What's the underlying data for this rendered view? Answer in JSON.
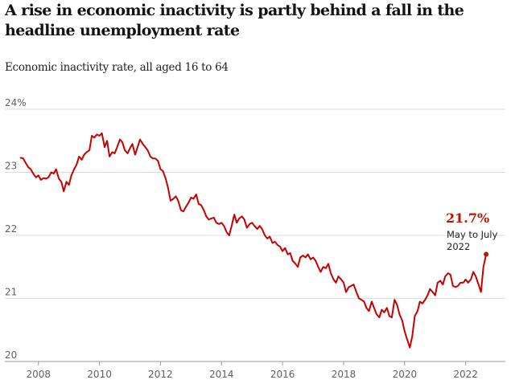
{
  "title": "A rise in economic inactivity is partly behind a fall in the headline unemployment rate",
  "subtitle": "Economic inactivity rate, all aged 16 to 64",
  "colors": {
    "line": "#c70000",
    "callout": "#b51800",
    "grid": "#dcdcdc",
    "axis": "#999999"
  },
  "chart_data": {
    "type": "line",
    "title": "A rise in economic inactivity is partly behind a fall in the headline unemployment rate",
    "subtitle": "Economic inactivity rate, all aged 16 to 64",
    "xlabel": "",
    "ylabel": "",
    "unit": "%",
    "ylim": [
      20,
      24
    ],
    "xlim": [
      2006.9,
      2023.3
    ],
    "grid": true,
    "y_ticks": [
      {
        "value": 20,
        "label": "20"
      },
      {
        "value": 21,
        "label": "21"
      },
      {
        "value": 22,
        "label": "22"
      },
      {
        "value": 23,
        "label": "23"
      },
      {
        "value": 24,
        "label": "24%"
      }
    ],
    "x_ticks": [
      {
        "value": 2008,
        "label": "2008"
      },
      {
        "value": 2010,
        "label": "2010"
      },
      {
        "value": 2012,
        "label": "2012"
      },
      {
        "value": 2014,
        "label": "2014"
      },
      {
        "value": 2016,
        "label": "2016"
      },
      {
        "value": 2018,
        "label": "2018"
      },
      {
        "value": 2020,
        "label": "2020"
      },
      {
        "value": 2022,
        "label": "2022"
      }
    ],
    "series": [
      {
        "name": "",
        "points": [
          [
            2007.42,
            23.23
          ],
          [
            2007.5,
            23.22
          ],
          [
            2007.58,
            23.15
          ],
          [
            2007.67,
            23.08
          ],
          [
            2007.75,
            23.05
          ],
          [
            2007.83,
            22.98
          ],
          [
            2007.92,
            22.92
          ],
          [
            2008.0,
            22.95
          ],
          [
            2008.08,
            22.88
          ],
          [
            2008.17,
            22.91
          ],
          [
            2008.25,
            22.9
          ],
          [
            2008.33,
            22.92
          ],
          [
            2008.42,
            23.0
          ],
          [
            2008.5,
            22.98
          ],
          [
            2008.58,
            23.05
          ],
          [
            2008.67,
            22.9
          ],
          [
            2008.75,
            22.85
          ],
          [
            2008.83,
            22.7
          ],
          [
            2008.92,
            22.85
          ],
          [
            2009.0,
            22.8
          ],
          [
            2009.08,
            22.95
          ],
          [
            2009.17,
            23.05
          ],
          [
            2009.25,
            23.12
          ],
          [
            2009.33,
            23.25
          ],
          [
            2009.42,
            23.2
          ],
          [
            2009.5,
            23.28
          ],
          [
            2009.58,
            23.32
          ],
          [
            2009.67,
            23.35
          ],
          [
            2009.75,
            23.58
          ],
          [
            2009.83,
            23.55
          ],
          [
            2009.92,
            23.6
          ],
          [
            2010.0,
            23.58
          ],
          [
            2010.08,
            23.62
          ],
          [
            2010.17,
            23.4
          ],
          [
            2010.25,
            23.5
          ],
          [
            2010.33,
            23.25
          ],
          [
            2010.42,
            23.32
          ],
          [
            2010.5,
            23.3
          ],
          [
            2010.58,
            23.4
          ],
          [
            2010.67,
            23.52
          ],
          [
            2010.75,
            23.48
          ],
          [
            2010.83,
            23.35
          ],
          [
            2010.92,
            23.3
          ],
          [
            2011.0,
            23.38
          ],
          [
            2011.08,
            23.45
          ],
          [
            2011.17,
            23.28
          ],
          [
            2011.25,
            23.4
          ],
          [
            2011.33,
            23.52
          ],
          [
            2011.42,
            23.45
          ],
          [
            2011.5,
            23.4
          ],
          [
            2011.58,
            23.35
          ],
          [
            2011.67,
            23.25
          ],
          [
            2011.75,
            23.22
          ],
          [
            2011.83,
            23.22
          ],
          [
            2011.92,
            23.18
          ],
          [
            2012.0,
            23.05
          ],
          [
            2012.08,
            23.02
          ],
          [
            2012.17,
            22.9
          ],
          [
            2012.25,
            22.75
          ],
          [
            2012.33,
            22.55
          ],
          [
            2012.42,
            22.58
          ],
          [
            2012.5,
            22.62
          ],
          [
            2012.58,
            22.55
          ],
          [
            2012.67,
            22.4
          ],
          [
            2012.75,
            22.38
          ],
          [
            2012.83,
            22.45
          ],
          [
            2012.92,
            22.52
          ],
          [
            2013.0,
            22.6
          ],
          [
            2013.08,
            22.58
          ],
          [
            2013.17,
            22.65
          ],
          [
            2013.25,
            22.5
          ],
          [
            2013.33,
            22.48
          ],
          [
            2013.42,
            22.4
          ],
          [
            2013.5,
            22.3
          ],
          [
            2013.58,
            22.25
          ],
          [
            2013.67,
            22.27
          ],
          [
            2013.75,
            22.28
          ],
          [
            2013.83,
            22.2
          ],
          [
            2013.92,
            22.18
          ],
          [
            2014.0,
            22.2
          ],
          [
            2014.08,
            22.15
          ],
          [
            2014.17,
            22.05
          ],
          [
            2014.25,
            22.0
          ],
          [
            2014.33,
            22.15
          ],
          [
            2014.42,
            22.33
          ],
          [
            2014.5,
            22.2
          ],
          [
            2014.58,
            22.27
          ],
          [
            2014.67,
            22.3
          ],
          [
            2014.75,
            22.25
          ],
          [
            2014.83,
            22.12
          ],
          [
            2014.92,
            22.18
          ],
          [
            2015.0,
            22.2
          ],
          [
            2015.08,
            22.15
          ],
          [
            2015.17,
            22.1
          ],
          [
            2015.25,
            22.15
          ],
          [
            2015.33,
            22.1
          ],
          [
            2015.42,
            22.0
          ],
          [
            2015.5,
            21.95
          ],
          [
            2015.58,
            21.98
          ],
          [
            2015.67,
            21.88
          ],
          [
            2015.75,
            21.9
          ],
          [
            2015.83,
            21.85
          ],
          [
            2015.92,
            21.82
          ],
          [
            2016.0,
            21.75
          ],
          [
            2016.08,
            21.8
          ],
          [
            2016.17,
            21.7
          ],
          [
            2016.25,
            21.72
          ],
          [
            2016.33,
            21.6
          ],
          [
            2016.42,
            21.55
          ],
          [
            2016.5,
            21.5
          ],
          [
            2016.58,
            21.65
          ],
          [
            2016.67,
            21.68
          ],
          [
            2016.75,
            21.65
          ],
          [
            2016.83,
            21.7
          ],
          [
            2016.92,
            21.62
          ],
          [
            2017.0,
            21.65
          ],
          [
            2017.08,
            21.6
          ],
          [
            2017.17,
            21.5
          ],
          [
            2017.25,
            21.42
          ],
          [
            2017.33,
            21.5
          ],
          [
            2017.42,
            21.48
          ],
          [
            2017.5,
            21.55
          ],
          [
            2017.58,
            21.4
          ],
          [
            2017.67,
            21.3
          ],
          [
            2017.75,
            21.25
          ],
          [
            2017.83,
            21.35
          ],
          [
            2017.92,
            21.3
          ],
          [
            2018.0,
            21.25
          ],
          [
            2018.08,
            21.1
          ],
          [
            2018.17,
            21.18
          ],
          [
            2018.25,
            21.2
          ],
          [
            2018.33,
            21.22
          ],
          [
            2018.42,
            21.1
          ],
          [
            2018.5,
            21.0
          ],
          [
            2018.58,
            20.98
          ],
          [
            2018.67,
            20.95
          ],
          [
            2018.75,
            20.85
          ],
          [
            2018.83,
            20.8
          ],
          [
            2018.92,
            20.95
          ],
          [
            2019.0,
            20.85
          ],
          [
            2019.08,
            20.75
          ],
          [
            2019.17,
            20.7
          ],
          [
            2019.25,
            20.82
          ],
          [
            2019.33,
            20.78
          ],
          [
            2019.42,
            20.85
          ],
          [
            2019.5,
            20.72
          ],
          [
            2019.58,
            20.7
          ],
          [
            2019.67,
            20.98
          ],
          [
            2019.75,
            20.9
          ],
          [
            2019.83,
            20.75
          ],
          [
            2019.92,
            20.65
          ],
          [
            2020.0,
            20.48
          ],
          [
            2020.08,
            20.35
          ],
          [
            2020.17,
            20.22
          ],
          [
            2020.25,
            20.4
          ],
          [
            2020.33,
            20.72
          ],
          [
            2020.42,
            20.8
          ],
          [
            2020.5,
            20.95
          ],
          [
            2020.58,
            20.92
          ],
          [
            2020.67,
            20.98
          ],
          [
            2020.75,
            21.05
          ],
          [
            2020.83,
            21.15
          ],
          [
            2020.92,
            21.1
          ],
          [
            2021.0,
            21.05
          ],
          [
            2021.08,
            21.25
          ],
          [
            2021.17,
            21.28
          ],
          [
            2021.25,
            21.22
          ],
          [
            2021.33,
            21.35
          ],
          [
            2021.42,
            21.4
          ],
          [
            2021.5,
            21.38
          ],
          [
            2021.58,
            21.2
          ],
          [
            2021.67,
            21.18
          ],
          [
            2021.75,
            21.2
          ],
          [
            2021.83,
            21.25
          ],
          [
            2021.92,
            21.25
          ],
          [
            2022.0,
            21.3
          ],
          [
            2022.08,
            21.25
          ],
          [
            2022.17,
            21.3
          ],
          [
            2022.25,
            21.42
          ],
          [
            2022.33,
            21.35
          ],
          [
            2022.42,
            21.22
          ],
          [
            2022.5,
            21.1
          ],
          [
            2022.58,
            21.5
          ],
          [
            2022.67,
            21.7
          ]
        ]
      }
    ],
    "annotation": {
      "value_label": "21.7%",
      "note_line1": "May to July",
      "note_line2": "2022",
      "x": 2022.67,
      "y": 21.7
    }
  }
}
